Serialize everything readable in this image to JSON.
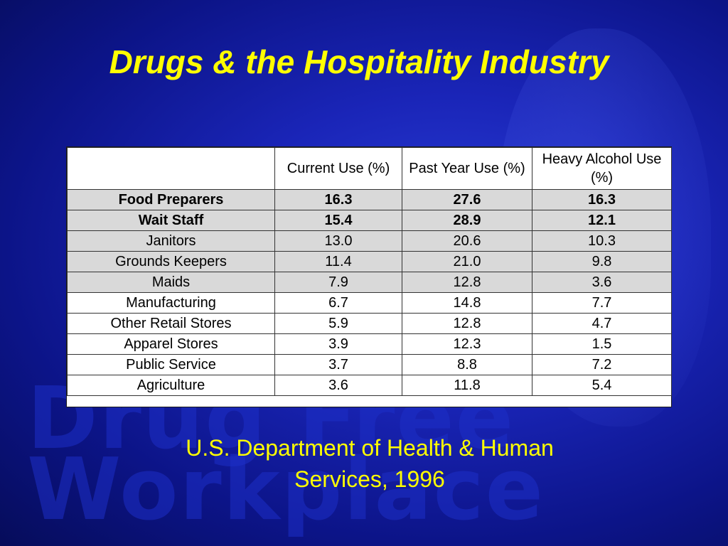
{
  "slide": {
    "title": "Drugs & the Hospitality Industry",
    "source_line1": "U.S. Department of Health & Human",
    "source_line2": "Services, 1996",
    "watermark_line1": "Drug Free",
    "watermark_line2": "Workplace"
  },
  "colors": {
    "title": "#ffff00",
    "background": "#1a25b8",
    "shaded_row": "#d9d9d9"
  },
  "chart_data": {
    "type": "table",
    "columns": [
      "",
      "Current Use (%)",
      "Past Year Use (%)",
      "Heavy Alcohol Use (%)"
    ],
    "rows": [
      {
        "label": "Food Preparers",
        "values": [
          "16.3",
          "27.6",
          "16.3"
        ],
        "bold": true,
        "shaded": true
      },
      {
        "label": "Wait Staff",
        "values": [
          "15.4",
          "28.9",
          "12.1"
        ],
        "bold": true,
        "shaded": true
      },
      {
        "label": "Janitors",
        "values": [
          "13.0",
          "20.6",
          "10.3"
        ],
        "bold": false,
        "shaded": true
      },
      {
        "label": "Grounds Keepers",
        "values": [
          "11.4",
          "21.0",
          "9.8"
        ],
        "bold": false,
        "shaded": true
      },
      {
        "label": "Maids",
        "values": [
          "7.9",
          "12.8",
          "3.6"
        ],
        "bold": false,
        "shaded": true
      },
      {
        "label": "Manufacturing",
        "values": [
          "6.7",
          "14.8",
          "7.7"
        ],
        "bold": false,
        "shaded": false
      },
      {
        "label": "Other Retail Stores",
        "values": [
          "5.9",
          "12.8",
          "4.7"
        ],
        "bold": false,
        "shaded": false
      },
      {
        "label": "Apparel Stores",
        "values": [
          "3.9",
          "12.3",
          "1.5"
        ],
        "bold": false,
        "shaded": false
      },
      {
        "label": "Public Service",
        "values": [
          "3.7",
          "8.8",
          "7.2"
        ],
        "bold": false,
        "shaded": false
      },
      {
        "label": "Agriculture",
        "values": [
          "3.6",
          "11.8",
          "5.4"
        ],
        "bold": false,
        "shaded": false
      }
    ]
  }
}
